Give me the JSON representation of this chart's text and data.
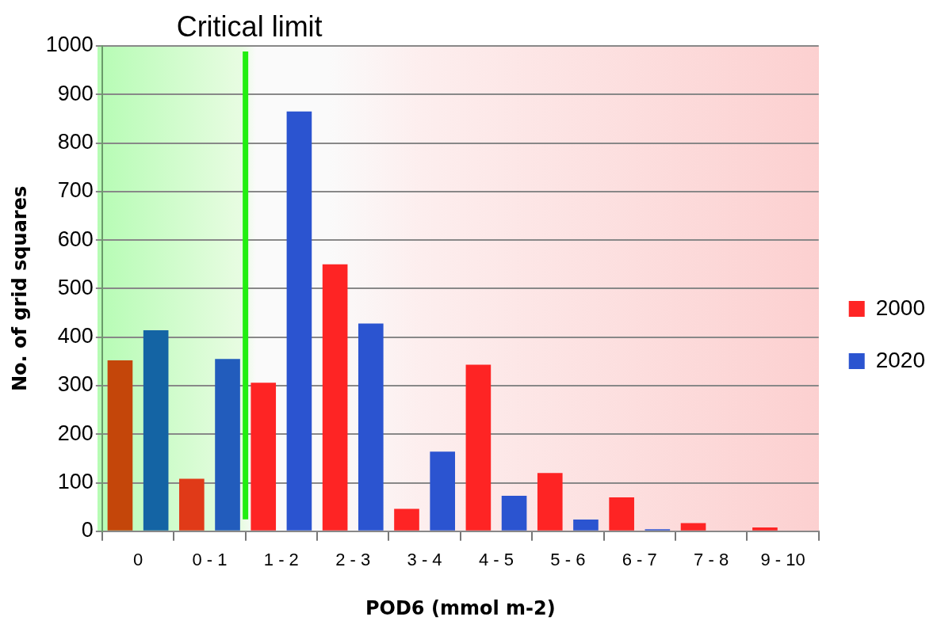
{
  "chart_data": {
    "type": "bar",
    "xlabel": "POD6 (mmol m-2)",
    "ylabel": "No. of grid squares",
    "categories": [
      "0",
      "0 - 1",
      "1 - 2",
      "2 - 3",
      "3 - 4",
      "4 - 5",
      "5 - 6",
      "6 - 7",
      "7 - 8",
      "9 - 10"
    ],
    "series": [
      {
        "name": "2000",
        "color": "#fe2424",
        "colors": [
          "#c4460a",
          "#e03a18",
          "#fe2424",
          "#fe2424",
          "#fe2424",
          "#fe2424",
          "#fe2424",
          "#fe2424",
          "#fe2424",
          "#fe2424"
        ],
        "values": [
          352,
          108,
          306,
          550,
          46,
          343,
          120,
          70,
          17,
          8
        ]
      },
      {
        "name": "2020",
        "color": "#2b54d0",
        "colors": [
          "#1464a4",
          "#225cbc",
          "#2b54d0",
          "#2b54d0",
          "#2b54d0",
          "#2b54d0",
          "#2b54d0",
          "#2b54d0",
          "#2b54d0",
          "#2b54d0"
        ],
        "values": [
          414,
          355,
          865,
          428,
          164,
          73,
          24,
          4,
          0,
          null
        ]
      }
    ],
    "ylim": [
      0,
      1000
    ],
    "yticks": [
      0,
      100,
      200,
      300,
      400,
      500,
      600,
      700,
      800,
      900,
      1000
    ],
    "grid": "y",
    "legend": "right",
    "ref_lines": [
      {
        "axis": "x",
        "value": "1 - 2",
        "label": "Critical limit",
        "color": "#22ee11"
      }
    ]
  }
}
